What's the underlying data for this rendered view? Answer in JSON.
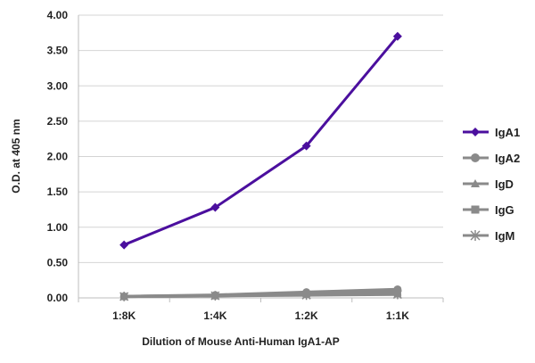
{
  "chart_data": {
    "type": "line",
    "title": "",
    "xlabel": "Dilution of Mouse Anti-Human IgA1-AP",
    "ylabel": "O.D. at 405 nm",
    "categories": [
      "1:8K",
      "1:4K",
      "1:2K",
      "1:1K"
    ],
    "ylim": [
      0,
      4
    ],
    "y_ticks": [
      "0.00",
      "0.50",
      "1.00",
      "1.50",
      "2.00",
      "2.50",
      "3.00",
      "3.50",
      "4.00"
    ],
    "grid": "horizontal",
    "legend_position": "right",
    "series": [
      {
        "name": "IgA1",
        "values": [
          0.75,
          1.28,
          2.15,
          3.7
        ],
        "color": "#4b0f9e",
        "marker": "diamond"
      },
      {
        "name": "IgA2",
        "values": [
          0.02,
          0.04,
          0.08,
          0.12
        ],
        "color": "#8a8a8a",
        "marker": "circle"
      },
      {
        "name": "IgD",
        "values": [
          0.02,
          0.03,
          0.06,
          0.08
        ],
        "color": "#8a8a8a",
        "marker": "triangle"
      },
      {
        "name": "IgG",
        "values": [
          0.02,
          0.03,
          0.05,
          0.06
        ],
        "color": "#8a8a8a",
        "marker": "square"
      },
      {
        "name": "IgM",
        "values": [
          0.02,
          0.03,
          0.04,
          0.05
        ],
        "color": "#8a8a8a",
        "marker": "star"
      }
    ]
  }
}
